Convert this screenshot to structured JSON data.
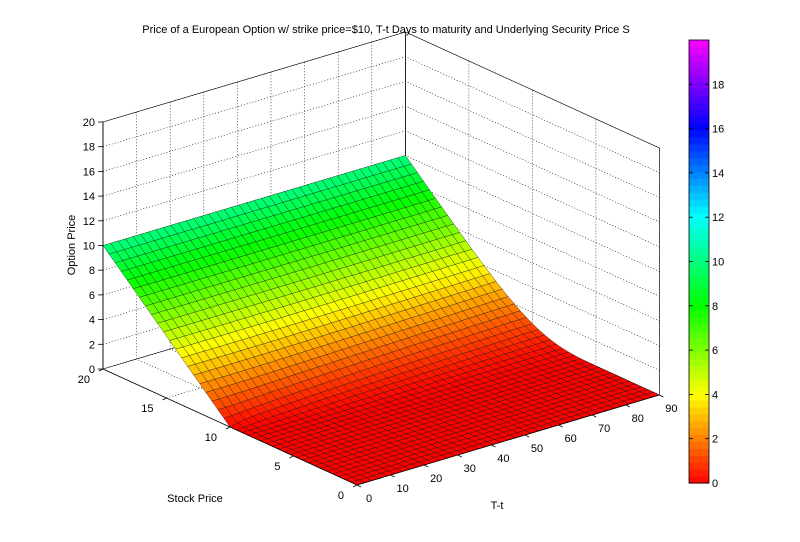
{
  "chart_data": {
    "type": "surface",
    "title": "Price of a European Option w/ strike price=$10, T-t Days to maturity and Underlying Security Price S",
    "xlabel": "T-t",
    "ylabel": "Stock Price",
    "zlabel": "Option Price",
    "x_ticks": [
      0,
      10,
      20,
      30,
      40,
      50,
      60,
      70,
      80,
      90
    ],
    "y_ticks": [
      0,
      5,
      10,
      15,
      20
    ],
    "z_ticks": [
      0,
      2,
      4,
      6,
      8,
      10,
      12,
      14,
      16,
      18,
      20
    ],
    "xlim": [
      0,
      90
    ],
    "ylim": [
      0,
      20
    ],
    "zlim": [
      0,
      20
    ],
    "surface_samples": {
      "description": "Option price (z) sampled at T-t = 0 (front edge) and T-t = 90 (back edge)",
      "stock_price": [
        0,
        5,
        10,
        15,
        20
      ],
      "option_price_at_T0": [
        0,
        0,
        0,
        5,
        10
      ],
      "option_price_at_T90": [
        0,
        0.2,
        2.5,
        6,
        10
      ]
    },
    "colorbar": {
      "ticks": [
        0,
        2,
        4,
        6,
        8,
        10,
        12,
        14,
        16,
        18
      ],
      "range": [
        0,
        20
      ],
      "colormap": "hsv"
    },
    "grid": true
  }
}
